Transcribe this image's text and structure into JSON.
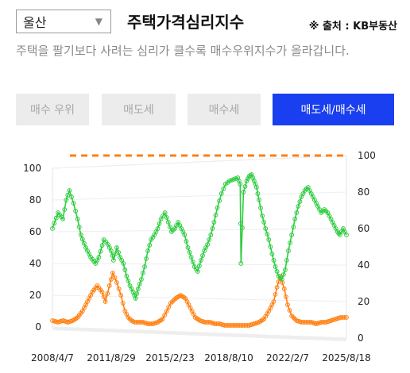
{
  "region_select": {
    "value": "울산"
  },
  "title": "주택가격심리지수",
  "source": "※ 출처 : KB부동산",
  "description": "주택을 팔기보다 사려는 심리가 클수록 매수우위지수가 올라갑니다.",
  "tabs": [
    {
      "label": "매수 우위",
      "active": false
    },
    {
      "label": "매도세",
      "active": false
    },
    {
      "label": "매수세",
      "active": false
    },
    {
      "label": "매도세/매수세",
      "active": true
    }
  ],
  "colors": {
    "sell_series": "#2ecc40",
    "buy_series": "#ff7f0e",
    "reference_line": "#ff7f0e",
    "accent": "#1a3ff0"
  },
  "chart_data": {
    "type": "line",
    "x_tick_labels": [
      "2008/4/7",
      "2011/8/29",
      "2015/2/23",
      "2018/8/10",
      "2022/2/7",
      "2025/8/18"
    ],
    "y_left": {
      "ticks": [
        0,
        20,
        40,
        60,
        80,
        100
      ],
      "ylim": [
        0,
        100
      ]
    },
    "y_right": {
      "ticks": [
        0,
        20,
        40,
        60,
        80,
        100
      ],
      "ylim": [
        0,
        100
      ]
    },
    "reference_line": {
      "value": 100,
      "style": "dashed"
    },
    "grid": true,
    "legend": "none",
    "series": [
      {
        "key": "sell",
        "marker": "circle",
        "points": [
          [
            2008.26,
            62
          ],
          [
            2008.6,
            72
          ],
          [
            2008.9,
            68
          ],
          [
            2009.1,
            80
          ],
          [
            2009.3,
            86
          ],
          [
            2009.55,
            78
          ],
          [
            2009.8,
            68
          ],
          [
            2010.0,
            58
          ],
          [
            2010.3,
            50
          ],
          [
            2010.6,
            44
          ],
          [
            2010.9,
            40
          ],
          [
            2011.1,
            44
          ],
          [
            2011.4,
            55
          ],
          [
            2011.66,
            52
          ],
          [
            2011.85,
            48
          ],
          [
            2012.0,
            42
          ],
          [
            2012.2,
            50
          ],
          [
            2012.4,
            44
          ],
          [
            2012.6,
            40
          ],
          [
            2012.8,
            32
          ],
          [
            2013.0,
            26
          ],
          [
            2013.2,
            22
          ],
          [
            2013.35,
            18
          ],
          [
            2013.5,
            24
          ],
          [
            2013.7,
            30
          ],
          [
            2013.9,
            38
          ],
          [
            2014.1,
            48
          ],
          [
            2014.3,
            55
          ],
          [
            2014.5,
            58
          ],
          [
            2014.7,
            62
          ],
          [
            2014.9,
            68
          ],
          [
            2015.15,
            72
          ],
          [
            2015.35,
            66
          ],
          [
            2015.55,
            60
          ],
          [
            2015.75,
            62
          ],
          [
            2015.95,
            66
          ],
          [
            2016.15,
            62
          ],
          [
            2016.35,
            58
          ],
          [
            2016.55,
            50
          ],
          [
            2016.75,
            44
          ],
          [
            2016.95,
            38
          ],
          [
            2017.15,
            35
          ],
          [
            2017.35,
            42
          ],
          [
            2017.55,
            48
          ],
          [
            2017.75,
            52
          ],
          [
            2017.95,
            58
          ],
          [
            2018.15,
            66
          ],
          [
            2018.35,
            75
          ],
          [
            2018.6,
            84
          ],
          [
            2018.85,
            90
          ],
          [
            2019.1,
            92
          ],
          [
            2019.35,
            93
          ],
          [
            2019.6,
            94
          ],
          [
            2019.75,
            90
          ],
          [
            2019.8,
            40
          ],
          [
            2019.95,
            85
          ],
          [
            2020.15,
            92
          ],
          [
            2020.3,
            95
          ],
          [
            2020.45,
            96
          ],
          [
            2020.6,
            92
          ],
          [
            2020.75,
            88
          ],
          [
            2020.9,
            80
          ],
          [
            2021.1,
            70
          ],
          [
            2021.3,
            62
          ],
          [
            2021.5,
            55
          ],
          [
            2021.7,
            46
          ],
          [
            2021.9,
            38
          ],
          [
            2022.1,
            32
          ],
          [
            2022.3,
            30
          ],
          [
            2022.5,
            36
          ],
          [
            2022.7,
            48
          ],
          [
            2022.9,
            58
          ],
          [
            2023.1,
            68
          ],
          [
            2023.3,
            76
          ],
          [
            2023.5,
            82
          ],
          [
            2023.7,
            86
          ],
          [
            2023.9,
            88
          ],
          [
            2024.1,
            84
          ],
          [
            2024.3,
            80
          ],
          [
            2024.5,
            76
          ],
          [
            2024.7,
            72
          ],
          [
            2024.9,
            74
          ],
          [
            2025.1,
            72
          ],
          [
            2025.3,
            68
          ],
          [
            2025.5,
            64
          ],
          [
            2025.7,
            60
          ],
          [
            2025.85,
            58
          ],
          [
            2026.05,
            62
          ],
          [
            2026.25,
            58
          ]
        ]
      },
      {
        "key": "buy",
        "marker": "circle",
        "points": [
          [
            2008.26,
            4
          ],
          [
            2008.6,
            3
          ],
          [
            2008.9,
            4
          ],
          [
            2009.2,
            3
          ],
          [
            2009.5,
            4
          ],
          [
            2009.8,
            6
          ],
          [
            2010.1,
            10
          ],
          [
            2010.4,
            16
          ],
          [
            2010.7,
            22
          ],
          [
            2011.0,
            26
          ],
          [
            2011.3,
            22
          ],
          [
            2011.5,
            16
          ],
          [
            2011.75,
            26
          ],
          [
            2011.95,
            34
          ],
          [
            2012.2,
            28
          ],
          [
            2012.45,
            20
          ],
          [
            2012.7,
            10
          ],
          [
            2012.9,
            6
          ],
          [
            2013.1,
            4
          ],
          [
            2013.3,
            3
          ],
          [
            2013.5,
            3
          ],
          [
            2013.8,
            3
          ],
          [
            2014.1,
            2
          ],
          [
            2014.4,
            2
          ],
          [
            2014.7,
            3
          ],
          [
            2015.0,
            5
          ],
          [
            2015.25,
            10
          ],
          [
            2015.5,
            15
          ],
          [
            2015.8,
            18
          ],
          [
            2016.1,
            20
          ],
          [
            2016.4,
            18
          ],
          [
            2016.7,
            12
          ],
          [
            2017.0,
            6
          ],
          [
            2017.3,
            4
          ],
          [
            2017.6,
            3
          ],
          [
            2017.9,
            3
          ],
          [
            2018.2,
            2
          ],
          [
            2018.5,
            2
          ],
          [
            2018.8,
            1
          ],
          [
            2019.1,
            1
          ],
          [
            2019.4,
            1
          ],
          [
            2019.7,
            1
          ],
          [
            2020.0,
            1
          ],
          [
            2020.3,
            1
          ],
          [
            2020.6,
            2
          ],
          [
            2020.9,
            3
          ],
          [
            2021.2,
            5
          ],
          [
            2021.5,
            10
          ],
          [
            2021.8,
            16
          ],
          [
            2022.0,
            25
          ],
          [
            2022.2,
            32
          ],
          [
            2022.45,
            24
          ],
          [
            2022.65,
            14
          ],
          [
            2022.9,
            7
          ],
          [
            2023.2,
            4
          ],
          [
            2023.5,
            3
          ],
          [
            2023.8,
            3
          ],
          [
            2024.1,
            3
          ],
          [
            2024.4,
            2
          ],
          [
            2024.7,
            3
          ],
          [
            2025.0,
            3
          ],
          [
            2025.3,
            4
          ],
          [
            2025.6,
            5
          ],
          [
            2025.9,
            6
          ],
          [
            2026.25,
            6
          ]
        ]
      }
    ]
  }
}
